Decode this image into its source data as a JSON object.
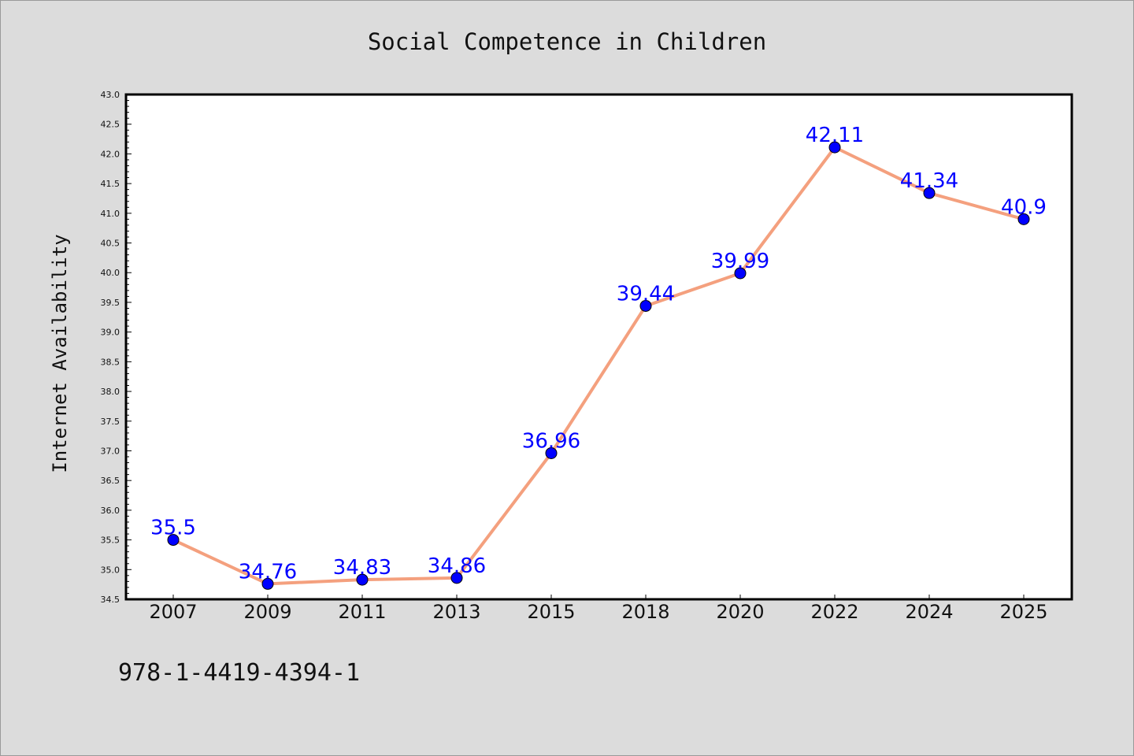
{
  "chart_data": {
    "type": "line",
    "title": "Social Competence in Children",
    "ylabel": "Internet Availability",
    "xlabel": "",
    "categories": [
      "2007",
      "2009",
      "2011",
      "2013",
      "2015",
      "2018",
      "2020",
      "2022",
      "2024",
      "2025"
    ],
    "values": [
      35.5,
      34.76,
      34.83,
      34.86,
      36.96,
      39.44,
      39.99,
      42.11,
      41.34,
      40.9
    ],
    "data_labels": [
      "35.5",
      "34.76",
      "34.83",
      "34.86",
      "36.96",
      "39.44",
      "39.99",
      "42.11",
      "41.34",
      "40.9"
    ],
    "ylim": [
      34.5,
      43.0
    ],
    "y_major_ticks": [
      "34.5",
      "35.0",
      "35.5",
      "36.0",
      "36.5",
      "37.0",
      "37.5",
      "38.0",
      "38.5",
      "39.0",
      "39.5",
      "40.0",
      "40.5",
      "41.0",
      "41.5",
      "42.0",
      "42.5",
      "43.0"
    ],
    "y_minor_step": 0.1,
    "grid": false,
    "legend": "none",
    "line_color": "#f4a07e",
    "marker_color": "#0000ff",
    "label_color": "#0000ff"
  },
  "footer": {
    "isbn": "978-1-4419-4394-1"
  }
}
